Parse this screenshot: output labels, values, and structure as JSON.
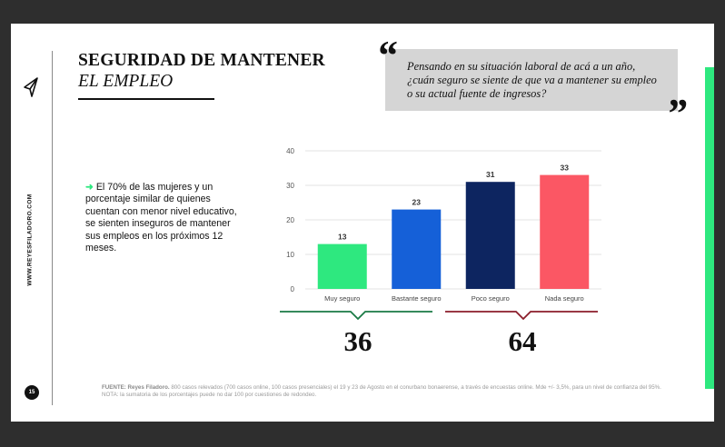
{
  "slide": {
    "website": "WWW.REYESFILADORO.COM",
    "page_number": "15",
    "title_line1": "SEGURIDAD DE MANTENER",
    "title_line2": "EL EMPLEO",
    "quote_open": "“",
    "quote_close": "”",
    "question": "Pensando en su situación laboral de acá a un año, ¿cuán seguro se siente de que va a mantener su empleo o su actual fuente de ingresos?",
    "bullet_arrow": "➜",
    "bullet_text": "El 70% de las mujeres y un porcentaje similar de quienes cuentan con menor nivel educativo, se sienten inseguros de mantener sus empleos en los próximos 12 meses.",
    "source_label": "FUENTE: Reyes Filadoro.",
    "source_text": "800 casos relevados (700 casos online, 100 casos presenciales) el 19 y 23 de Agosto en el conurbano bonaerense, a través de encuestas online. Mde +/- 3,5%, para un nivel de confianza del 95%. NOTA: la sumatoria de los porcentajes puede no dar 100 por cuestiones de redondeo.",
    "group_totals": [
      "36",
      "64"
    ]
  },
  "colors": {
    "accent_green": "#2ee87f",
    "bar_colors": [
      "#2ee87f",
      "#1560d8",
      "#0d2560",
      "#fb5764"
    ],
    "brace_colors": [
      "#1a7a45",
      "#8b1d2a"
    ]
  },
  "chart_data": {
    "type": "bar",
    "categories": [
      "Muy seguro",
      "Bastante seguro",
      "Poco seguro",
      "Nada seguro"
    ],
    "values": [
      13,
      23,
      31,
      33
    ],
    "ylim": [
      0,
      40
    ],
    "yticks": [
      0,
      10,
      20,
      30,
      40
    ],
    "grid": true,
    "title": "",
    "xlabel": "",
    "ylabel": ""
  }
}
